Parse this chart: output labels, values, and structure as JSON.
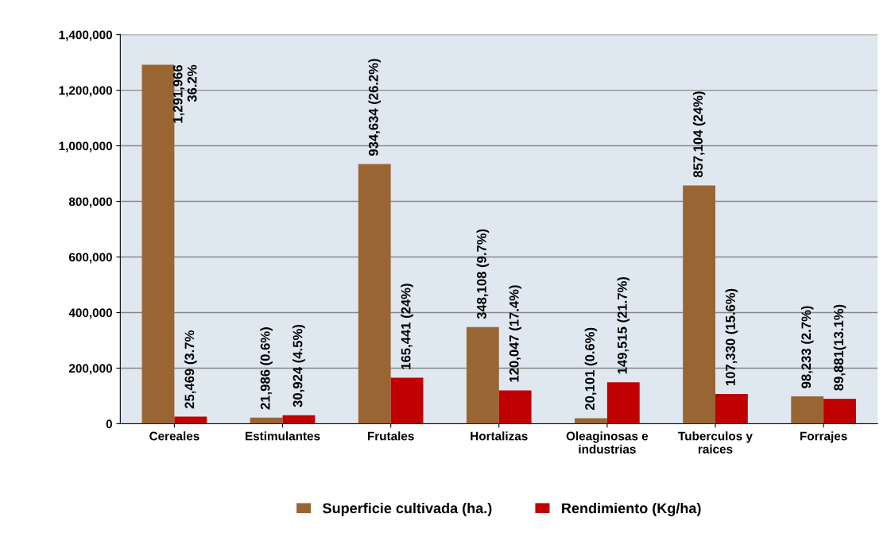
{
  "chart_data": {
    "type": "bar",
    "categories": [
      "Cereales",
      "Estimulantes",
      "Frutales",
      "Hortalizas",
      "Oleaginosas e\nindustrias",
      "Tuberculos y\nraices",
      "Forrajes"
    ],
    "series": [
      {
        "name": "Superficie cultivada (ha.)",
        "color": "#996633",
        "values": [
          1291966,
          21986,
          934634,
          348108,
          20101,
          857104,
          98233
        ],
        "value_labels": [
          "1,291,966\n36.2%",
          "21,986 (0.6%)",
          "934,634 (26.2%)",
          "348,108 (9.7%)",
          "20,101 (0.6%)",
          "857,104 (24%)",
          "98,233 (2.7%)"
        ]
      },
      {
        "name": "Rendimiento (Kg/ha)",
        "color": "#c00000",
        "values": [
          25469,
          30924,
          165441,
          120047,
          149515,
          107330,
          89881
        ],
        "value_labels": [
          "25,469 (3.7%",
          "30,924 (4.5%)",
          "165,441 (24%)",
          "120,047 (17.4%)",
          "149,515 (21.7%)",
          "107,330 (15.6%)",
          "89,881(13.1%)"
        ]
      }
    ],
    "ylim": [
      0,
      1400000
    ],
    "yticks": [
      {
        "value": 0,
        "label": "0"
      },
      {
        "value": 200000,
        "label": "200,000"
      },
      {
        "value": 400000,
        "label": "400,000"
      },
      {
        "value": 600000,
        "label": "600,000"
      },
      {
        "value": 800000,
        "label": "800,000"
      },
      {
        "value": 1000000,
        "label": "1,000,000"
      },
      {
        "value": 1200000,
        "label": "1,200,000"
      },
      {
        "value": 1400000,
        "label": "1,400,000"
      }
    ],
    "grid": "y",
    "legend": "bottom"
  }
}
